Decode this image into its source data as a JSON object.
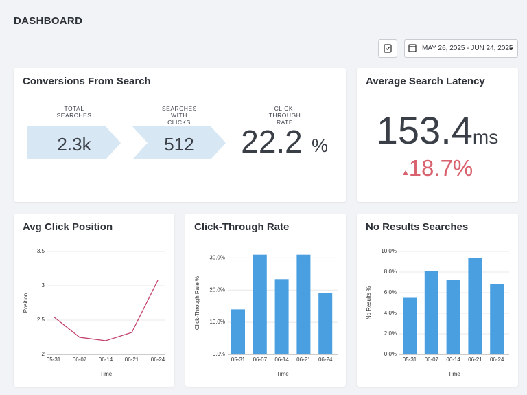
{
  "header": {
    "title": "DASHBOARD",
    "date_range": "MAY 26, 2025 - JUN 24, 2025"
  },
  "conversions": {
    "title": "Conversions From Search",
    "total_searches": {
      "label": "TOTAL SEARCHES",
      "value": "2.3k"
    },
    "searches_with_clicks": {
      "label": "SEARCHES WITH CLICKS",
      "value": 512
    },
    "click_through_rate": {
      "label": "CLICK-THROUGH RATE",
      "value": 22.2,
      "unit": "%"
    }
  },
  "latency": {
    "title": "Average Search Latency",
    "value": 153.4,
    "unit": "ms",
    "change": "18.7%"
  },
  "chart_data": [
    {
      "type": "line",
      "title": "Avg Click Position",
      "x_label": "Time",
      "y_label": "Position",
      "categories": [
        "05-31",
        "06-07",
        "06-14",
        "06-21",
        "06-24"
      ],
      "values": [
        2.55,
        2.25,
        2.2,
        2.32,
        3.08
      ],
      "color": "#c2416b",
      "ylim": [
        2,
        3.5
      ],
      "yticks": [
        2,
        2.5,
        3,
        3.5
      ],
      "grid": true
    },
    {
      "type": "bar",
      "title": "Click-Through Rate",
      "x_label": "Time",
      "y_label": "Click-Through Rate %",
      "categories": [
        "05-31",
        "06-07",
        "06-14",
        "06-21",
        "06-24"
      ],
      "values": [
        14,
        31,
        23.4,
        31,
        19
      ],
      "color": "#4a9fe0",
      "ylim": [
        0,
        32
      ],
      "yticks": [
        {
          "value": 0,
          "label": "0.0%"
        },
        {
          "value": 10,
          "label": "10.0%"
        },
        {
          "value": 20,
          "label": "20.0%"
        },
        {
          "value": 30,
          "label": "30.0%"
        }
      ],
      "grid": true
    },
    {
      "type": "bar",
      "title": "No Results Searches",
      "x_label": "Time",
      "y_label": "No Results %",
      "categories": [
        "05-31",
        "06-07",
        "06-14",
        "06-21",
        "06-24"
      ],
      "values": [
        5.5,
        8.1,
        7.2,
        9.4,
        6.8
      ],
      "color": "#4a9fe0",
      "ylim": [
        0,
        10
      ],
      "yticks": [
        {
          "value": 0,
          "label": "0.0%"
        },
        {
          "value": 2,
          "label": "2.0%"
        },
        {
          "value": 4,
          "label": "4.0%"
        },
        {
          "value": 6,
          "label": "6.0%"
        },
        {
          "value": 8,
          "label": "8.0%"
        },
        {
          "value": 10,
          "label": "10.0%"
        }
      ],
      "grid": true
    }
  ]
}
